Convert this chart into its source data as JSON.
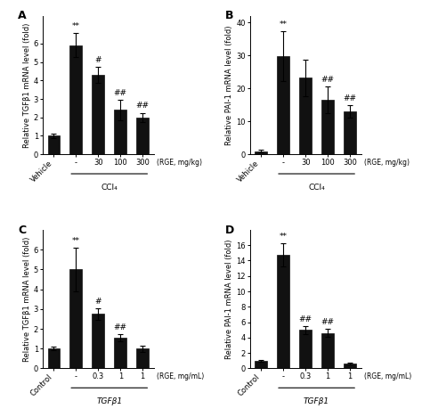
{
  "panel_A": {
    "title": "A",
    "ylabel": "Relative TGFβ1 mRNA level (fold)",
    "xlabel_group": "CCl₄",
    "xlabel_rge": "(RGE, mg/kg)",
    "categories": [
      "Vehicle",
      "-",
      "30",
      "100",
      "300"
    ],
    "values": [
      1.0,
      5.9,
      4.3,
      2.4,
      2.0
    ],
    "errors": [
      0.12,
      0.65,
      0.42,
      0.55,
      0.25
    ],
    "annotations": [
      "",
      "**",
      "#",
      "##",
      "##"
    ],
    "ylim": [
      0,
      7.5
    ],
    "yticks": [
      0,
      1,
      2,
      3,
      4,
      5,
      6
    ],
    "group_bar_indices": [
      1,
      4
    ]
  },
  "panel_B": {
    "title": "B",
    "ylabel": "Relative PAI-1 mRNA level (fold)",
    "xlabel_group": "CCl₄",
    "xlabel_rge": "(RGE, mg/kg)",
    "categories": [
      "Vehicle",
      "-",
      "30",
      "100",
      "300"
    ],
    "values": [
      1.0,
      29.8,
      23.2,
      16.5,
      13.0
    ],
    "errors": [
      0.3,
      7.5,
      5.5,
      4.0,
      2.0
    ],
    "annotations": [
      "",
      "**",
      "",
      "##",
      "##"
    ],
    "ylim": [
      0,
      42
    ],
    "yticks": [
      0,
      10,
      20,
      30,
      40
    ],
    "group_bar_indices": [
      1,
      4
    ]
  },
  "panel_C": {
    "title": "C",
    "ylabel": "Relative TGFβ1 mRNA level (fold)",
    "xlabel_group": "TGFβ1",
    "xlabel_rge": "(RGE, mg/mL)",
    "categories": [
      "Control",
      "-",
      "0.3",
      "1",
      "1"
    ],
    "values": [
      1.0,
      5.0,
      2.75,
      1.55,
      1.0
    ],
    "errors": [
      0.08,
      1.1,
      0.3,
      0.18,
      0.15
    ],
    "annotations": [
      "",
      "**",
      "#",
      "##",
      ""
    ],
    "ylim": [
      0,
      7.0
    ],
    "yticks": [
      0,
      1,
      2,
      3,
      4,
      5,
      6
    ],
    "group_bar_indices": [
      1,
      4
    ]
  },
  "panel_D": {
    "title": "D",
    "ylabel": "Relative PAI-1 mRNA level (fold)",
    "xlabel_group": "TGFβ1",
    "xlabel_rge": "(RGE, mg/mL)",
    "categories": [
      "Control",
      "-",
      "0.3",
      "1",
      "1"
    ],
    "values": [
      1.0,
      14.7,
      5.0,
      4.6,
      0.6
    ],
    "errors": [
      0.1,
      1.5,
      0.5,
      0.55,
      0.1
    ],
    "annotations": [
      "",
      "**",
      "##",
      "##",
      ""
    ],
    "ylim": [
      0,
      18
    ],
    "yticks": [
      0,
      2,
      4,
      6,
      8,
      10,
      12,
      14,
      16
    ],
    "group_bar_indices": [
      1,
      4
    ]
  },
  "bar_color": "#111111",
  "bar_width": 0.55,
  "annot_fontsize": 6.5,
  "title_font_size": 9,
  "ylabel_font_size": 6.0,
  "tick_font_size": 6.0,
  "xlabel_group_fontsize": 6.5,
  "rge_fontsize": 5.5
}
